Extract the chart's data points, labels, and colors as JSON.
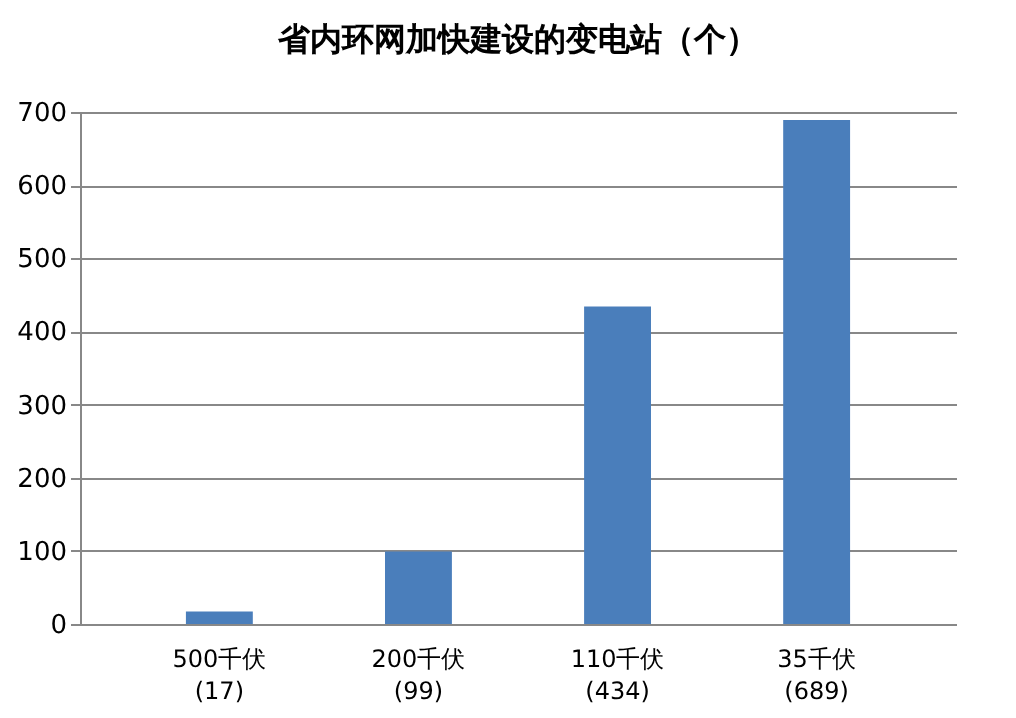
{
  "chart_data": {
    "type": "bar",
    "title": "省内环网加快建设的变电站（个）",
    "categories": [
      "500千伏\n(17)",
      "200千伏\n(99)",
      "110千伏\n(434)",
      "35千伏\n(689)"
    ],
    "values": [
      17,
      99,
      434,
      689
    ],
    "color": "#4a7ebb",
    "ylim": [
      0,
      700
    ],
    "yticks": [
      0,
      100,
      200,
      300,
      400,
      500,
      600,
      700
    ],
    "grid": true
  }
}
